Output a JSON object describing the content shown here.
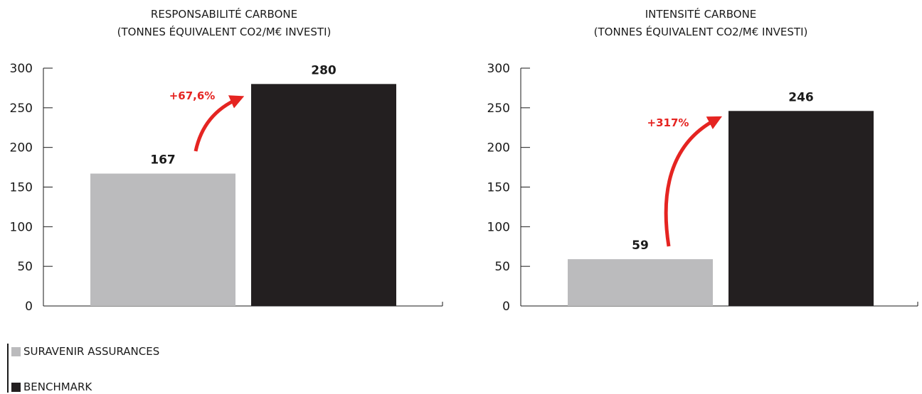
{
  "chart_data": [
    {
      "type": "bar",
      "title": "RESPONSABILITÉ CARBONE",
      "subtitle": "(TONNES ÉQUIVALENT CO2/M€ INVESTI)",
      "categories": [
        "SURAVENIR ASSURANCES",
        "BENCHMARK"
      ],
      "values": [
        167,
        280
      ],
      "ylim": [
        0,
        300
      ],
      "yticks": [
        0,
        50,
        100,
        150,
        200,
        250,
        300
      ],
      "annotation": "+67,6%",
      "grid": false
    },
    {
      "type": "bar",
      "title": "INTENSITÉ CARBONE",
      "subtitle": "(TONNES ÉQUIVALENT CO2/M€ INVESTI)",
      "categories": [
        "SURAVENIR ASSURANCES",
        "BENCHMARK"
      ],
      "values": [
        59,
        246
      ],
      "ylim": [
        0,
        300
      ],
      "yticks": [
        0,
        50,
        100,
        150,
        200,
        250,
        300
      ],
      "annotation": "+317%",
      "grid": false
    }
  ],
  "legend": {
    "placement": "bottom-left",
    "items": [
      {
        "label": "SURAVENIR ASSURANCES",
        "color": "#bbbbbd"
      },
      {
        "label": "BENCHMARK",
        "color": "#231f20"
      }
    ]
  },
  "colors": {
    "series_1": "#bbbbbd",
    "series_2": "#231f20",
    "annotation": "#e52421",
    "text": "#1a1a1a"
  }
}
